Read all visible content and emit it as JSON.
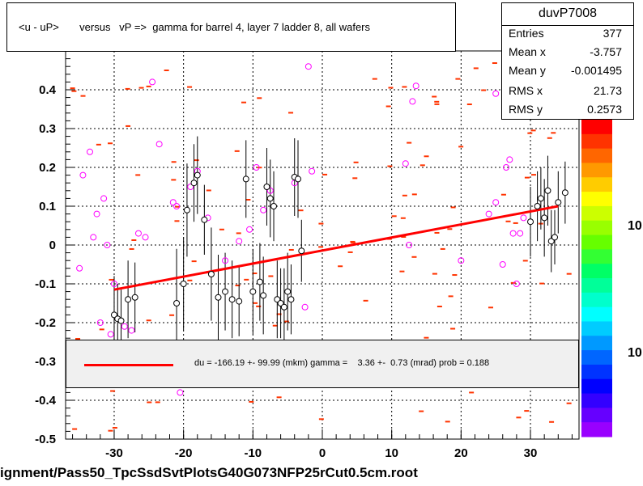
{
  "title": "<u - uP>       versus   vP =>  gamma for barrel 4, layer 7 ladder 8, all wafers",
  "stats": {
    "name": "duvP7008",
    "rows": [
      {
        "label": "Entries",
        "value": "377"
      },
      {
        "label": "Mean x",
        "value": "-3.757"
      },
      {
        "label": "Mean y",
        "value": "-0.001495"
      },
      {
        "label": "RMS x",
        "value": "21.73"
      },
      {
        "label": "RMS y",
        "value": "0.2573"
      }
    ]
  },
  "legend": {
    "text": "du = -166.19 +- 99.99 (mkm) gamma =    3.36 +-  0.73 (mrad) prob = 0.188"
  },
  "footer": "ignment/Pass50_TpcSsdSvtPlotsG40G073NFP25rCut0.5cm.root",
  "colors": {
    "fit": "#ff0000",
    "open_point": "#000000",
    "magenta_point": "#ff00ff",
    "histogram_cell": "#ff3300"
  },
  "chart_data": {
    "type": "scatter",
    "xlim": [
      -37,
      37
    ],
    "ylim": [
      -0.5,
      0.5
    ],
    "x_ticks": [
      -30,
      -20,
      -10,
      0,
      10,
      20,
      30
    ],
    "y_ticks": [
      -0.5,
      -0.4,
      -0.3,
      -0.2,
      -0.1,
      0,
      0.1,
      0.2,
      0.3,
      0.4
    ],
    "grid": true,
    "palette_labels": [
      "10",
      "10"
    ],
    "fit_line": {
      "x": [
        -30,
        34
      ],
      "y": [
        -0.115,
        0.1
      ]
    },
    "profile_points": [
      {
        "x": -30,
        "y": -0.18,
        "err": 0.1
      },
      {
        "x": -29.5,
        "y": -0.19,
        "err": 0.09
      },
      {
        "x": -29,
        "y": -0.195,
        "err": 0.08
      },
      {
        "x": -28,
        "y": -0.14,
        "err": 0.1
      },
      {
        "x": -27,
        "y": -0.135,
        "err": 0.09
      },
      {
        "x": -21,
        "y": -0.15,
        "err": 0.14
      },
      {
        "x": -20,
        "y": -0.1,
        "err": 0.12
      },
      {
        "x": -19.5,
        "y": 0.09,
        "err": 0.12
      },
      {
        "x": -18.5,
        "y": 0.16,
        "err": 0.1
      },
      {
        "x": -18,
        "y": 0.18,
        "err": 0.1
      },
      {
        "x": -17,
        "y": 0.065,
        "err": 0.09
      },
      {
        "x": -16,
        "y": -0.075,
        "err": 0.12
      },
      {
        "x": -15,
        "y": -0.135,
        "err": 0.11
      },
      {
        "x": -14,
        "y": -0.12,
        "err": 0.1
      },
      {
        "x": -13,
        "y": -0.14,
        "err": 0.1
      },
      {
        "x": -12,
        "y": -0.145,
        "err": 0.09
      },
      {
        "x": -11,
        "y": 0.17,
        "err": 0.1
      },
      {
        "x": -10,
        "y": -0.12,
        "err": 0.11
      },
      {
        "x": -9,
        "y": -0.095,
        "err": 0.1
      },
      {
        "x": -8.5,
        "y": -0.13,
        "err": 0.1
      },
      {
        "x": -8,
        "y": 0.15,
        "err": 0.1
      },
      {
        "x": -7.5,
        "y": 0.12,
        "err": 0.1
      },
      {
        "x": -7,
        "y": 0.1,
        "err": 0.09
      },
      {
        "x": -6.5,
        "y": -0.14,
        "err": 0.1
      },
      {
        "x": -6,
        "y": -0.15,
        "err": 0.09
      },
      {
        "x": -5.5,
        "y": -0.16,
        "err": 0.1
      },
      {
        "x": -5,
        "y": -0.12,
        "err": 0.1
      },
      {
        "x": -4.5,
        "y": -0.14,
        "err": 0.09
      },
      {
        "x": -4,
        "y": 0.175,
        "err": 0.1
      },
      {
        "x": -3.5,
        "y": 0.17,
        "err": 0.1
      },
      {
        "x": -3,
        "y": -0.015,
        "err": 0.08
      },
      {
        "x": 30,
        "y": 0.06,
        "err": 0.09
      },
      {
        "x": 31,
        "y": 0.1,
        "err": 0.09
      },
      {
        "x": 31.5,
        "y": 0.12,
        "err": 0.08
      },
      {
        "x": 32,
        "y": 0.07,
        "err": 0.1
      },
      {
        "x": 32.5,
        "y": 0.14,
        "err": 0.09
      },
      {
        "x": 33,
        "y": 0.01,
        "err": 0.08
      },
      {
        "x": 33.5,
        "y": 0.02,
        "err": 0.07
      },
      {
        "x": 34,
        "y": 0.11,
        "err": 0.08
      },
      {
        "x": 35,
        "y": 0.135,
        "err": 0.08
      }
    ],
    "magenta_points": [
      {
        "x": -35,
        "y": -0.06
      },
      {
        "x": -34.5,
        "y": 0.18
      },
      {
        "x": -33.5,
        "y": 0.24
      },
      {
        "x": -33,
        "y": 0.02
      },
      {
        "x": -32.5,
        "y": 0.08
      },
      {
        "x": -32,
        "y": -0.2
      },
      {
        "x": -31.5,
        "y": 0.12
      },
      {
        "x": -31,
        "y": 0.0
      },
      {
        "x": -30.5,
        "y": -0.23
      },
      {
        "x": -30,
        "y": -0.1
      },
      {
        "x": -28.5,
        "y": -0.21
      },
      {
        "x": -27.5,
        "y": -0.22
      },
      {
        "x": -26.5,
        "y": 0.03
      },
      {
        "x": -25.5,
        "y": 0.02
      },
      {
        "x": -24.5,
        "y": 0.42
      },
      {
        "x": -23.5,
        "y": 0.26
      },
      {
        "x": -21.5,
        "y": 0.11
      },
      {
        "x": -21,
        "y": 0.1
      },
      {
        "x": -19,
        "y": 0.15
      },
      {
        "x": -18,
        "y": 0.19
      },
      {
        "x": -16.5,
        "y": 0.07
      },
      {
        "x": -14,
        "y": -0.04
      },
      {
        "x": -12,
        "y": 0.01
      },
      {
        "x": -10.5,
        "y": 0.04
      },
      {
        "x": -9.5,
        "y": 0.2
      },
      {
        "x": -8.5,
        "y": 0.09
      },
      {
        "x": -7.5,
        "y": 0.14
      },
      {
        "x": -4,
        "y": 0.16
      },
      {
        "x": -2.5,
        "y": -0.16
      },
      {
        "x": -2,
        "y": 0.46
      },
      {
        "x": -1.5,
        "y": 0.19
      },
      {
        "x": 12,
        "y": 0.21
      },
      {
        "x": 12.5,
        "y": 0.0
      },
      {
        "x": 13,
        "y": 0.37
      },
      {
        "x": 13.5,
        "y": 0.41
      },
      {
        "x": 20,
        "y": -0.04
      },
      {
        "x": 24,
        "y": 0.08
      },
      {
        "x": 25,
        "y": 0.11
      },
      {
        "x": 26.5,
        "y": 0.2
      },
      {
        "x": 27,
        "y": 0.22
      },
      {
        "x": 27.5,
        "y": 0.03
      },
      {
        "x": 28,
        "y": -0.1
      },
      {
        "x": 28.5,
        "y": 0.03
      },
      {
        "x": 29,
        "y": 0.07
      },
      {
        "x": -20.5,
        "y": -0.38
      },
      {
        "x": 25,
        "y": 0.39
      },
      {
        "x": 26,
        "y": -0.05
      }
    ]
  }
}
